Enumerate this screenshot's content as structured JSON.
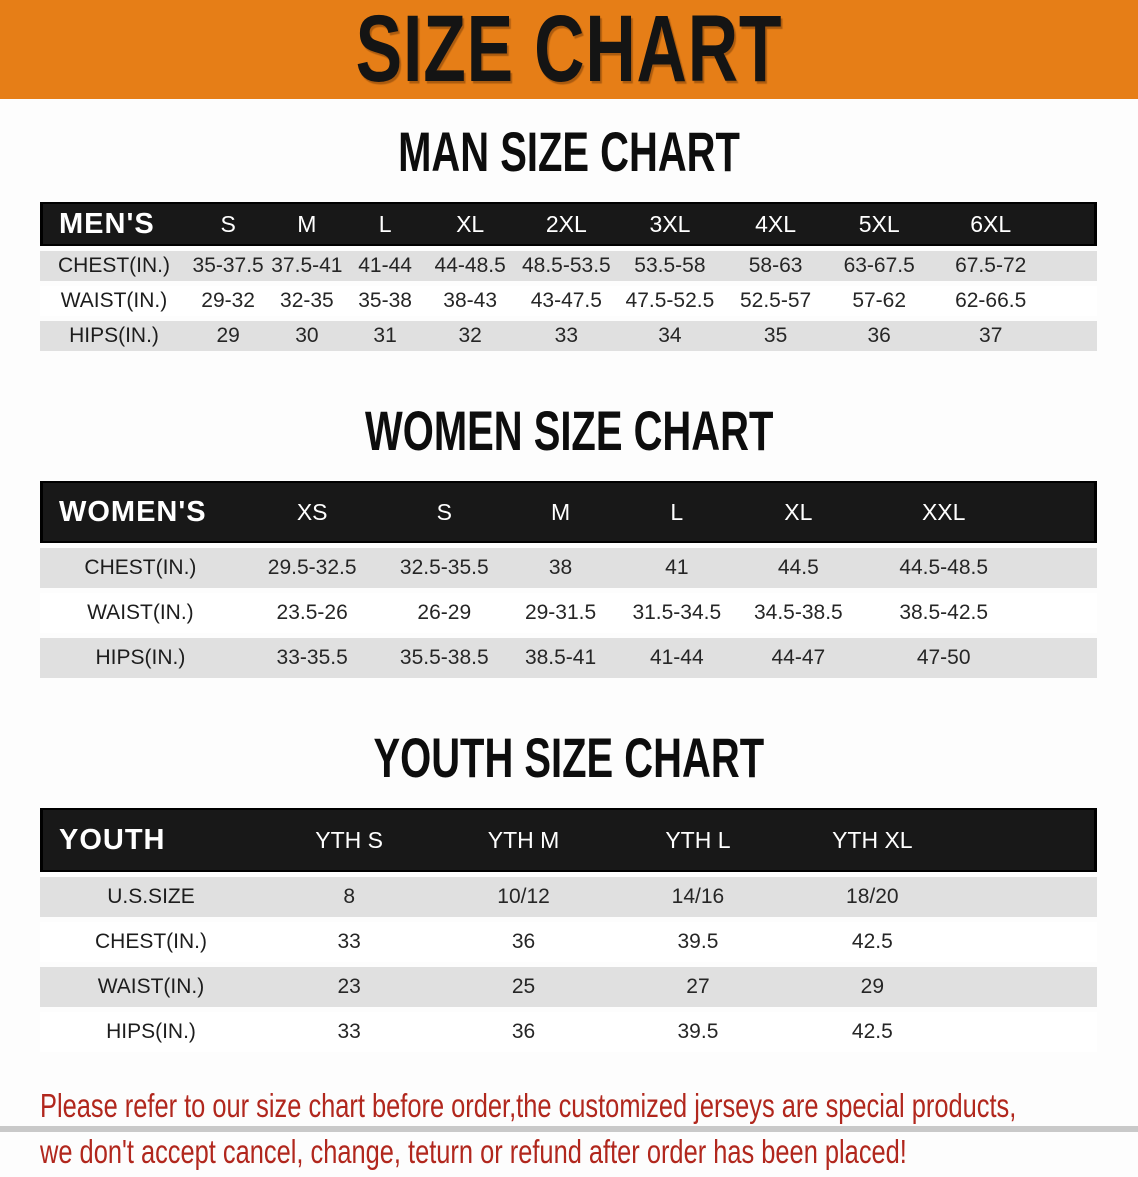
{
  "banner": {
    "title": "SIZE CHART",
    "bg_color": "#e67e17",
    "text_color": "#141414"
  },
  "sections": [
    {
      "heading": "MAN SIZE CHART",
      "table": {
        "label": "MEN'S",
        "columns": [
          "S",
          "M",
          "L",
          "XL",
          "2XL",
          "3XL",
          "4XL",
          "5XL",
          "6XL"
        ],
        "rows": [
          {
            "label": "CHEST(IN.)",
            "values": [
              "35-37.5",
              "37.5-41",
              "41-44",
              "44-48.5",
              "48.5-53.5",
              "53.5-58",
              "58-63",
              "63-67.5",
              "67.5-72"
            ]
          },
          {
            "label": "WAIST(IN.)",
            "values": [
              "29-32",
              "32-35",
              "35-38",
              "38-43",
              "43-47.5",
              "47.5-52.5",
              "52.5-57",
              "57-62",
              "62-66.5"
            ]
          },
          {
            "label": "HIPS(IN.)",
            "values": [
              "29",
              "30",
              "31",
              "32",
              "33",
              "34",
              "35",
              "36",
              "37"
            ]
          }
        ]
      }
    },
    {
      "heading": "WOMEN SIZE CHART",
      "table": {
        "label": "WOMEN'S",
        "columns": [
          "XS",
          "S",
          "M",
          "L",
          "XL",
          "XXL"
        ],
        "rows": [
          {
            "label": "CHEST(IN.)",
            "values": [
              "29.5-32.5",
              "32.5-35.5",
              "38",
              "41",
              "44.5",
              "44.5-48.5"
            ]
          },
          {
            "label": "WAIST(IN.)",
            "values": [
              "23.5-26",
              "26-29",
              "29-31.5",
              "31.5-34.5",
              "34.5-38.5",
              "38.5-42.5"
            ]
          },
          {
            "label": "HIPS(IN.)",
            "values": [
              "33-35.5",
              "35.5-38.5",
              "38.5-41",
              "41-44",
              "44-47",
              "47-50"
            ]
          }
        ]
      }
    },
    {
      "heading": "YOUTH SIZE CHART",
      "table": {
        "label": "YOUTH",
        "columns": [
          "YTH S",
          "YTH M",
          "YTH L",
          "YTH XL"
        ],
        "rows": [
          {
            "label": "U.S.SIZE",
            "values": [
              "8",
              "10/12",
              "14/16",
              "18/20"
            ]
          },
          {
            "label": "CHEST(IN.)",
            "values": [
              "33",
              "36",
              "39.5",
              "42.5"
            ]
          },
          {
            "label": "WAIST(IN.)",
            "values": [
              "23",
              "25",
              "27",
              "29"
            ]
          },
          {
            "label": "HIPS(IN.)",
            "values": [
              "33",
              "36",
              "39.5",
              "42.5"
            ]
          }
        ]
      }
    }
  ],
  "footer": {
    "line1": "Please refer to our size chart before order,the customized jerseys are special products,",
    "line2": "we don't accept cancel, change, teturn or refund after order has been placed!",
    "text_color": "#b1271d"
  },
  "colors": {
    "table_header_bg": "#181818",
    "table_header_text": "#ffffff",
    "row_stripe_gray": "#e0e0e0",
    "row_stripe_white": "#ffffff",
    "body_bg": "#fdfdfd"
  }
}
